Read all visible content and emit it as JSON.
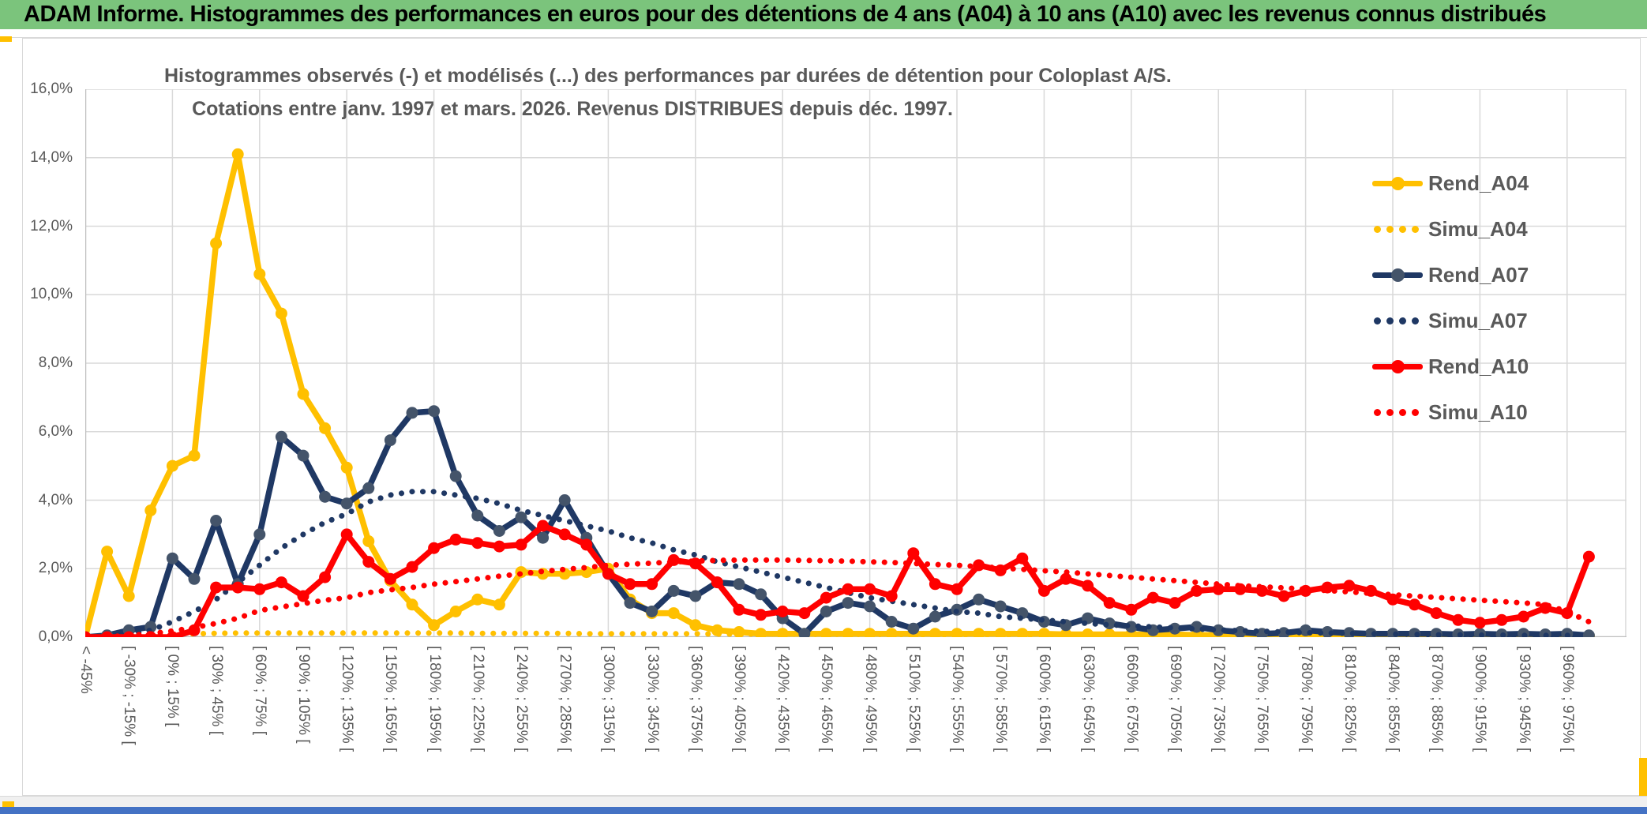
{
  "header": {
    "title": "ADAM Informe. Histogrammes des performances en euros pour des détentions de 4 ans (A04) à 10 ans (A10) avec les revenus connus distribués",
    "bg_color": "#7BC47C"
  },
  "chart_data": {
    "type": "line",
    "title_line1": "Histogrammes observés (-) et modélisés (...) des performances par durées de détention pour Coloplast A/S.",
    "title_line2": "Cotations entre janv. 1997 et mars. 2026. Revenus DISTRIBUES depuis déc. 1997.",
    "ylabel": "",
    "xlabel": "",
    "ylim": [
      0,
      16
    ],
    "y_tick_step_pct": 2,
    "y_ticks": [
      "16,0%",
      "14,0%",
      "12,0%",
      "10,0%",
      "8,0%",
      "6,0%",
      "4,0%",
      "2,0%",
      "0,0%"
    ],
    "grid": "both",
    "legend_position": "right",
    "x_labels_every_other_bin": [
      "< -45%",
      "[ -30% ; -15% [",
      "[ 0% ; 15% [",
      "[ 30% ; 45% [",
      "[ 60% ; 75% [",
      "[ 90% ; 105% [",
      "[ 120% ; 135% [",
      "[ 150% ; 165% [",
      "[ 180% ; 195% [",
      "[ 210% ; 225% [",
      "[ 240% ; 255% [",
      "[ 270% ; 285% [",
      "[ 300% ; 315% [",
      "[ 330% ; 345% [",
      "[ 360% ; 375% [",
      "[ 390% ; 405% [",
      "[ 420% ; 435% [",
      "[ 450% ; 465% [",
      "[ 480% ; 495% [",
      "[ 510% ; 525% [",
      "[ 540% ; 555% [",
      "[ 570% ; 585% [",
      "[ 600% ; 615% [",
      "[ 630% ; 645% [",
      "[ 660% ; 675% [",
      "[ 690% ; 705% [",
      "[ 720% ; 735% [",
      "[ 750% ; 765% [",
      "[ 780% ; 795% [",
      "[ 810% ; 825% [",
      "[ 840% ; 855% [",
      "[ 870% ; 885% [",
      "[ 900% ; 915% [",
      "[ 930% ; 945% [",
      "[ 960% ; 975% ["
    ],
    "series": [
      {
        "name": "Rend_A04",
        "style": "solid",
        "color": "#FFC000",
        "marker_color": "#FFC000",
        "values_pct": [
          0.0,
          2.5,
          1.2,
          3.7,
          5.0,
          5.3,
          11.5,
          14.1,
          10.6,
          9.45,
          7.1,
          6.1,
          4.95,
          2.8,
          1.65,
          0.95,
          0.35,
          0.75,
          1.1,
          0.95,
          1.9,
          1.85,
          1.85,
          1.9,
          2.0,
          1.1,
          0.7,
          0.7,
          0.35,
          0.2,
          0.15,
          0.1,
          0.1,
          0.1,
          0.1,
          0.1,
          0.1,
          0.1,
          0.1,
          0.1,
          0.1,
          0.1,
          0.1,
          0.1,
          0.1,
          0.08,
          0.08,
          0.08,
          0.08,
          0.08,
          0.08,
          0.06,
          0.06,
          0.06,
          0.06,
          0.06,
          0.05,
          0.05,
          0.05,
          0.05,
          0.05,
          0.05,
          0.05,
          0.04,
          0.04,
          0.04,
          0.04,
          0.03,
          0.03,
          0.03
        ]
      },
      {
        "name": "Simu_A04",
        "style": "dotted",
        "color": "#FFC000",
        "values_pct": [
          0.0,
          0.01,
          0.02,
          0.05,
          0.08,
          0.1,
          0.11,
          0.12,
          0.12,
          0.12,
          0.12,
          0.12,
          0.12,
          0.12,
          0.12,
          0.12,
          0.12,
          0.12,
          0.11,
          0.11,
          0.11,
          0.11,
          0.11,
          0.1,
          0.1,
          0.1,
          0.1,
          0.1,
          0.1,
          0.09,
          0.09,
          0.09,
          0.09,
          0.08,
          0.08,
          0.08,
          0.08,
          0.08,
          0.07,
          0.07,
          0.07,
          0.07,
          0.07,
          0.06,
          0.06,
          0.06,
          0.06,
          0.06,
          0.06,
          0.05,
          0.05,
          0.05,
          0.05,
          0.05,
          0.05,
          0.05,
          0.05,
          0.04,
          0.04,
          0.04,
          0.04,
          0.04,
          0.04,
          0.04,
          0.04,
          0.03,
          0.03,
          0.03,
          0.03,
          0.03
        ]
      },
      {
        "name": "Rend_A07",
        "style": "solid",
        "color": "#1F3864",
        "marker_color": "#44546A",
        "values_pct": [
          0.0,
          0.05,
          0.2,
          0.3,
          2.3,
          1.7,
          3.4,
          1.55,
          3.0,
          5.85,
          5.3,
          4.1,
          3.9,
          4.35,
          5.75,
          6.55,
          6.6,
          4.7,
          3.55,
          3.1,
          3.5,
          2.9,
          4.0,
          2.9,
          1.85,
          1.0,
          0.75,
          1.35,
          1.2,
          1.6,
          1.55,
          1.25,
          0.55,
          0.1,
          0.75,
          1.0,
          0.9,
          0.45,
          0.25,
          0.6,
          0.8,
          1.1,
          0.9,
          0.7,
          0.45,
          0.35,
          0.55,
          0.4,
          0.3,
          0.2,
          0.25,
          0.3,
          0.2,
          0.15,
          0.1,
          0.12,
          0.2,
          0.15,
          0.12,
          0.1,
          0.1,
          0.1,
          0.1,
          0.08,
          0.1,
          0.08,
          0.1,
          0.08,
          0.1,
          0.05
        ]
      },
      {
        "name": "Simu_A07",
        "style": "dotted",
        "color": "#1F3864",
        "values_pct": [
          0.0,
          0.02,
          0.08,
          0.2,
          0.45,
          0.75,
          1.1,
          1.6,
          2.1,
          2.6,
          3.0,
          3.35,
          3.6,
          3.95,
          4.15,
          4.25,
          4.25,
          4.15,
          4.05,
          3.9,
          3.7,
          3.55,
          3.4,
          3.25,
          3.1,
          2.9,
          2.75,
          2.55,
          2.4,
          2.2,
          2.05,
          1.9,
          1.75,
          1.6,
          1.45,
          1.3,
          1.15,
          1.05,
          0.95,
          0.85,
          0.75,
          0.7,
          0.6,
          0.55,
          0.5,
          0.45,
          0.4,
          0.36,
          0.33,
          0.3,
          0.27,
          0.24,
          0.21,
          0.19,
          0.17,
          0.15,
          0.13,
          0.12,
          0.11,
          0.1,
          0.09,
          0.08,
          0.07,
          0.07,
          0.06,
          0.06,
          0.05,
          0.05,
          0.05,
          0.04
        ]
      },
      {
        "name": "Rend_A10",
        "style": "solid",
        "color": "#FF0000",
        "marker_color": "#FF0000",
        "values_pct": [
          0.0,
          0.0,
          0.0,
          0.0,
          0.0,
          0.2,
          1.45,
          1.45,
          1.4,
          1.6,
          1.2,
          1.75,
          3.0,
          2.2,
          1.7,
          2.05,
          2.6,
          2.85,
          2.75,
          2.65,
          2.7,
          3.25,
          3.0,
          2.7,
          1.85,
          1.55,
          1.55,
          2.25,
          2.15,
          1.6,
          0.8,
          0.65,
          0.75,
          0.7,
          1.15,
          1.4,
          1.4,
          1.2,
          2.45,
          1.55,
          1.4,
          2.1,
          1.95,
          2.3,
          1.35,
          1.7,
          1.5,
          1.0,
          0.8,
          1.15,
          1.0,
          1.35,
          1.4,
          1.4,
          1.35,
          1.2,
          1.35,
          1.45,
          1.5,
          1.35,
          1.1,
          0.95,
          0.7,
          0.5,
          0.42,
          0.5,
          0.6,
          0.85,
          0.7,
          2.35
        ]
      },
      {
        "name": "Simu_A10",
        "style": "dotted",
        "color": "#FF0000",
        "values_pct": [
          0.0,
          0.01,
          0.05,
          0.1,
          0.18,
          0.28,
          0.4,
          0.55,
          0.78,
          0.88,
          0.98,
          1.08,
          1.15,
          1.3,
          1.38,
          1.45,
          1.55,
          1.62,
          1.7,
          1.78,
          1.85,
          1.92,
          1.98,
          2.03,
          2.1,
          2.13,
          2.16,
          2.2,
          2.22,
          2.24,
          2.25,
          2.25,
          2.25,
          2.24,
          2.23,
          2.22,
          2.2,
          2.18,
          2.15,
          2.12,
          2.1,
          2.06,
          2.02,
          1.98,
          1.94,
          1.9,
          1.85,
          1.8,
          1.75,
          1.7,
          1.65,
          1.6,
          1.55,
          1.5,
          1.47,
          1.44,
          1.4,
          1.36,
          1.32,
          1.28,
          1.24,
          1.2,
          1.16,
          1.12,
          1.08,
          1.04,
          1.0,
          0.95,
          0.75,
          0.45
        ]
      }
    ],
    "colors": {
      "grid": "#D9D9D9",
      "axis": "#BFBFBF",
      "text": "#595959",
      "gold": "#FFC000",
      "navy": "#1F3864",
      "navy_marker": "#44546A",
      "red": "#FF0000",
      "accent_blue_bar": "#4472C4"
    }
  }
}
